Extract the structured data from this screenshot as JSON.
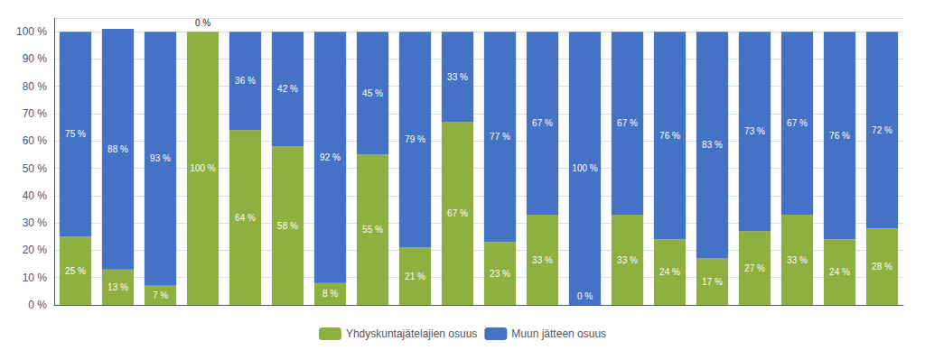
{
  "chart_data": {
    "type": "bar",
    "stacked": true,
    "categories": [
      null,
      null,
      null,
      null,
      null,
      null,
      null,
      null,
      null,
      null,
      null,
      null,
      null,
      null,
      null,
      null,
      null,
      null,
      null,
      null
    ],
    "series": [
      {
        "name": "Yhdyskuntajätelajien osuus",
        "color": "#8DB040",
        "values": [
          25,
          13,
          7,
          100,
          64,
          58,
          8,
          55,
          21,
          67,
          23,
          33,
          0,
          33,
          24,
          17,
          27,
          33,
          24,
          28
        ],
        "value_labels": [
          "25 %",
          "13 %",
          "7 %",
          "100 %",
          "64 %",
          "58 %",
          "8 %",
          "55 %",
          "21 %",
          "67 %",
          "23 %",
          "33 %",
          "0 %",
          "33 %",
          "24 %",
          "17 %",
          "27 %",
          "33 %",
          "24 %",
          "28 %"
        ]
      },
      {
        "name": "Muun jätteen osuus",
        "color": "#4472C4",
        "values": [
          75,
          88,
          93,
          0,
          36,
          42,
          92,
          45,
          79,
          33,
          77,
          67,
          100,
          67,
          76,
          83,
          73,
          67,
          76,
          72
        ],
        "value_labels": [
          "75 %",
          "88 %",
          "93 %",
          "0 %",
          "36 %",
          "42 %",
          "92 %",
          "45 %",
          "79 %",
          "33 %",
          "77 %",
          "67 %",
          "100 %",
          "67 %",
          "76 %",
          "83 %",
          "73 %",
          "67 %",
          "76 %",
          "72 %"
        ]
      }
    ],
    "ylim": [
      0,
      105
    ],
    "yticks": [
      {
        "value": 0,
        "label": "0 %"
      },
      {
        "value": 10,
        "label": "10 %"
      },
      {
        "value": 20,
        "label": "20 %"
      },
      {
        "value": 30,
        "label": "30 %"
      },
      {
        "value": 40,
        "label": "40 %"
      },
      {
        "value": 50,
        "label": "50 %"
      },
      {
        "value": 60,
        "label": "60 %"
      },
      {
        "value": 70,
        "label": "70 %"
      },
      {
        "value": 80,
        "label": "80 %"
      },
      {
        "value": 90,
        "label": "90 %"
      },
      {
        "value": 100,
        "label": "100 %"
      }
    ],
    "grid": true,
    "legend": "bottom",
    "data_labels": true,
    "tick_labels": "y"
  }
}
